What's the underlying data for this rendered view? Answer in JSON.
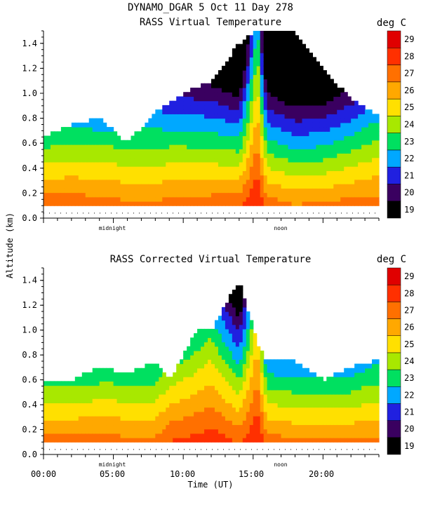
{
  "figure": {
    "header": "DYNAMO_DGAR    5 Oct 11 Day 278",
    "ylabel": "Altitude (km)",
    "xlabel": "Time (UT)",
    "xticks": [
      "00:00",
      "05:00",
      "10:00",
      "15:00",
      "20:00"
    ],
    "markers": [
      "midnight",
      "noon"
    ],
    "unit": "deg C"
  },
  "chart_data": [
    {
      "type": "heatmap",
      "title": "RASS Virtual Temperature",
      "xlabel": "Time (UT)",
      "ylabel": "Altitude (km)",
      "x_range_hours": [
        0,
        24
      ],
      "ylim": [
        0.0,
        1.5
      ],
      "yticks": [
        "0.0",
        "0.2",
        "0.4",
        "0.6",
        "0.8",
        "1.0",
        "1.2",
        "1.4"
      ],
      "colorbar": {
        "label": "deg C",
        "levels": [
          "19",
          "20",
          "21",
          "22",
          "23",
          "24",
          "25",
          "26",
          "27",
          "28",
          "29"
        ],
        "colors": [
          "#000000",
          "#3a0060",
          "#2020e0",
          "#00a8ff",
          "#00e060",
          "#a8e800",
          "#ffe000",
          "#ffa800",
          "#ff7000",
          "#ff3000",
          "#e00000"
        ]
      },
      "profile": {
        "hours": [
          0,
          2,
          4,
          6,
          8,
          10,
          12,
          14,
          15.3,
          16,
          18,
          20,
          22,
          23.5
        ],
        "top_km": [
          0.65,
          0.75,
          0.8,
          0.6,
          0.85,
          1.0,
          1.1,
          1.4,
          1.5,
          1.5,
          1.5,
          1.2,
          0.95,
          0.85
        ],
        "surface_temp_c": [
          28.5,
          28.5,
          28.3,
          28,
          28,
          28.3,
          28.5,
          28.8,
          29.5,
          28.5,
          28,
          28.2,
          28.3,
          28.3
        ],
        "lapse_c_per_km": [
          8,
          7.5,
          7.5,
          7,
          7,
          7.5,
          8,
          9,
          4,
          8.5,
          9,
          9,
          8,
          7
        ]
      }
    },
    {
      "type": "heatmap",
      "title": "RASS Corrected Virtual Temperature",
      "xlabel": "Time (UT)",
      "ylabel": "Altitude (km)",
      "x_range_hours": [
        0,
        24
      ],
      "ylim": [
        0.0,
        1.5
      ],
      "yticks": [
        "0.0",
        "0.2",
        "0.4",
        "0.6",
        "0.8",
        "1.0",
        "1.2",
        "1.4"
      ],
      "colorbar": {
        "label": "deg C",
        "levels": [
          "19",
          "20",
          "21",
          "22",
          "23",
          "24",
          "25",
          "26",
          "27",
          "28",
          "29"
        ],
        "colors": [
          "#000000",
          "#3a0060",
          "#2020e0",
          "#00a8ff",
          "#00e060",
          "#a8e800",
          "#ffe000",
          "#ffa800",
          "#ff7000",
          "#ff3000",
          "#e00000"
        ]
      },
      "profile": {
        "hours": [
          0,
          2,
          4,
          6,
          8,
          9,
          11,
          12,
          14,
          15.3,
          16,
          18,
          20,
          22,
          23.5
        ],
        "top_km": [
          0.6,
          0.6,
          0.7,
          0.65,
          0.75,
          0.6,
          1.0,
          1.0,
          1.4,
          0.9,
          0.75,
          0.75,
          0.6,
          0.7,
          0.75
        ],
        "surface_temp_c": [
          28.3,
          28.3,
          28.3,
          28,
          28,
          28.8,
          29,
          29.2,
          28.8,
          29.5,
          28.5,
          28,
          28,
          28,
          28
        ],
        "lapse_c_per_km": [
          8,
          8,
          7.5,
          7,
          7,
          7,
          6,
          5.5,
          8,
          4,
          8.5,
          8,
          8,
          8,
          7
        ]
      }
    }
  ]
}
